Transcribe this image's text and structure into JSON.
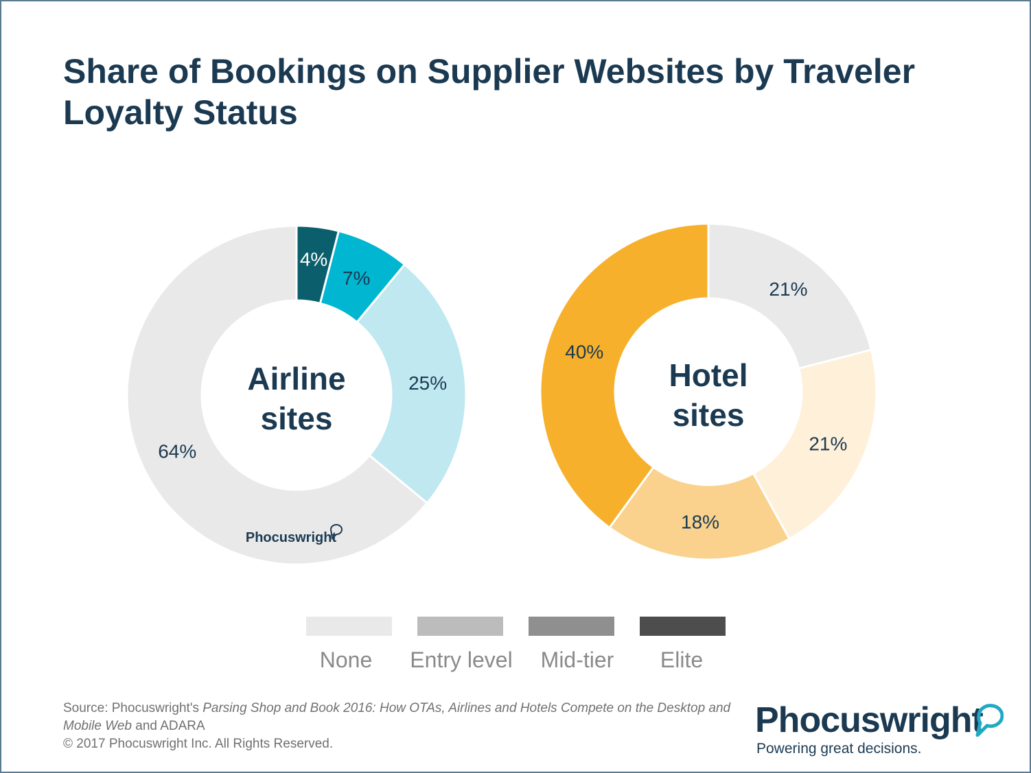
{
  "title": "Share of Bookings on Supplier Websites by Traveler Loyalty Status",
  "chart_data": [
    {
      "type": "pie",
      "title": "Airline sites",
      "center_lines": [
        "Airline",
        "sites"
      ],
      "labels": [
        "None",
        "Entry level",
        "Mid-tier",
        "Elite"
      ],
      "values": [
        64,
        25,
        7,
        4
      ],
      "value_labels": [
        "64%",
        "25%",
        "7%",
        "4%"
      ],
      "colors": [
        "#e9e9e9",
        "#bfe8f0",
        "#00b6d1",
        "#0b5e6b"
      ],
      "watermark": "Phocuswright"
    },
    {
      "type": "pie",
      "title": "Hotel sites",
      "center_lines": [
        "Hotel",
        "sites"
      ],
      "labels": [
        "None",
        "Entry level",
        "Mid-tier",
        "Elite"
      ],
      "values": [
        21,
        21,
        18,
        40
      ],
      "value_labels": [
        "21%",
        "21%",
        "18%",
        "40%"
      ],
      "colors": [
        "#e9e9e9",
        "#fff0da",
        "#fad28e",
        "#f7b02b"
      ]
    }
  ],
  "legend": {
    "items": [
      {
        "label": "None",
        "color": "#e9e9e9"
      },
      {
        "label": "Entry level",
        "color": "#bcbcbc"
      },
      {
        "label": "Mid-tier",
        "color": "#8f8f8f"
      },
      {
        "label": "Elite",
        "color": "#4d4d4d"
      }
    ]
  },
  "source": {
    "prefix": "Source: Phocuswright's ",
    "italic": "Parsing Shop and Book 2016: How OTAs, Airlines and Hotels Compete on the Desktop and Mobile Web",
    "suffix": " and ADARA"
  },
  "copyright": "© 2017 Phocuswright Inc. All Rights Reserved.",
  "brand": {
    "name": "Phocuswright",
    "tagline": "Powering great decisions."
  }
}
